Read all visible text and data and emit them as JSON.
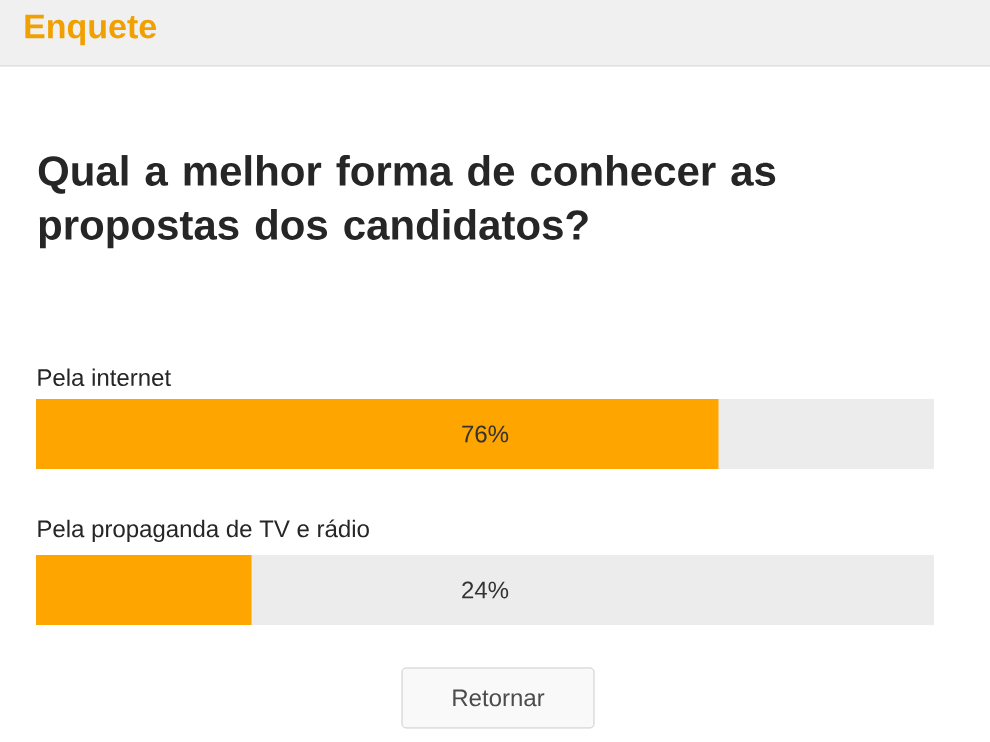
{
  "chart_data": {
    "type": "bar",
    "orientation": "horizontal",
    "title": "Enquete",
    "subtitle": "Qual a melhor forma de conhecer as propostas dos candidatos?",
    "categories": [
      "Pela internet",
      "Pela propaganda de TV e rádio"
    ],
    "values": [
      76,
      24
    ],
    "value_labels": [
      "76%",
      "24%"
    ],
    "color": "#ffa500",
    "xlim": [
      0,
      100
    ],
    "annotations": [
      "Retornar"
    ]
  }
}
